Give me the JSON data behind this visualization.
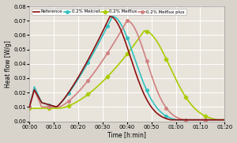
{
  "title": "",
  "xlabel": "Time [h:min]",
  "ylabel": "Heat flow [W/g]",
  "ylim": [
    0,
    0.08
  ],
  "xlim": [
    0,
    80
  ],
  "legend": [
    "Reference",
    "0.2% Melcret",
    "0.2% Melflux",
    "0.2% Melflux plus"
  ],
  "colors": [
    "#8B1010",
    "#30C0C0",
    "#AACC00",
    "#D08080"
  ],
  "marker_colors": [
    "#8B1010",
    "#30C0C0",
    "#AACC00",
    "#D08080"
  ],
  "xtick_labels": [
    "00:00",
    "00:10",
    "00:20",
    "00:30",
    "00:40",
    "00:50",
    "01:00",
    "01:10",
    "01:20"
  ],
  "ytick_labels": [
    "0.00",
    "0.01",
    "0.02",
    "0.03",
    "0.04",
    "0.05",
    "0.06",
    "0.07",
    "0.08"
  ],
  "background": "#D8D4CC",
  "plot_bg": "#E8E4DC"
}
